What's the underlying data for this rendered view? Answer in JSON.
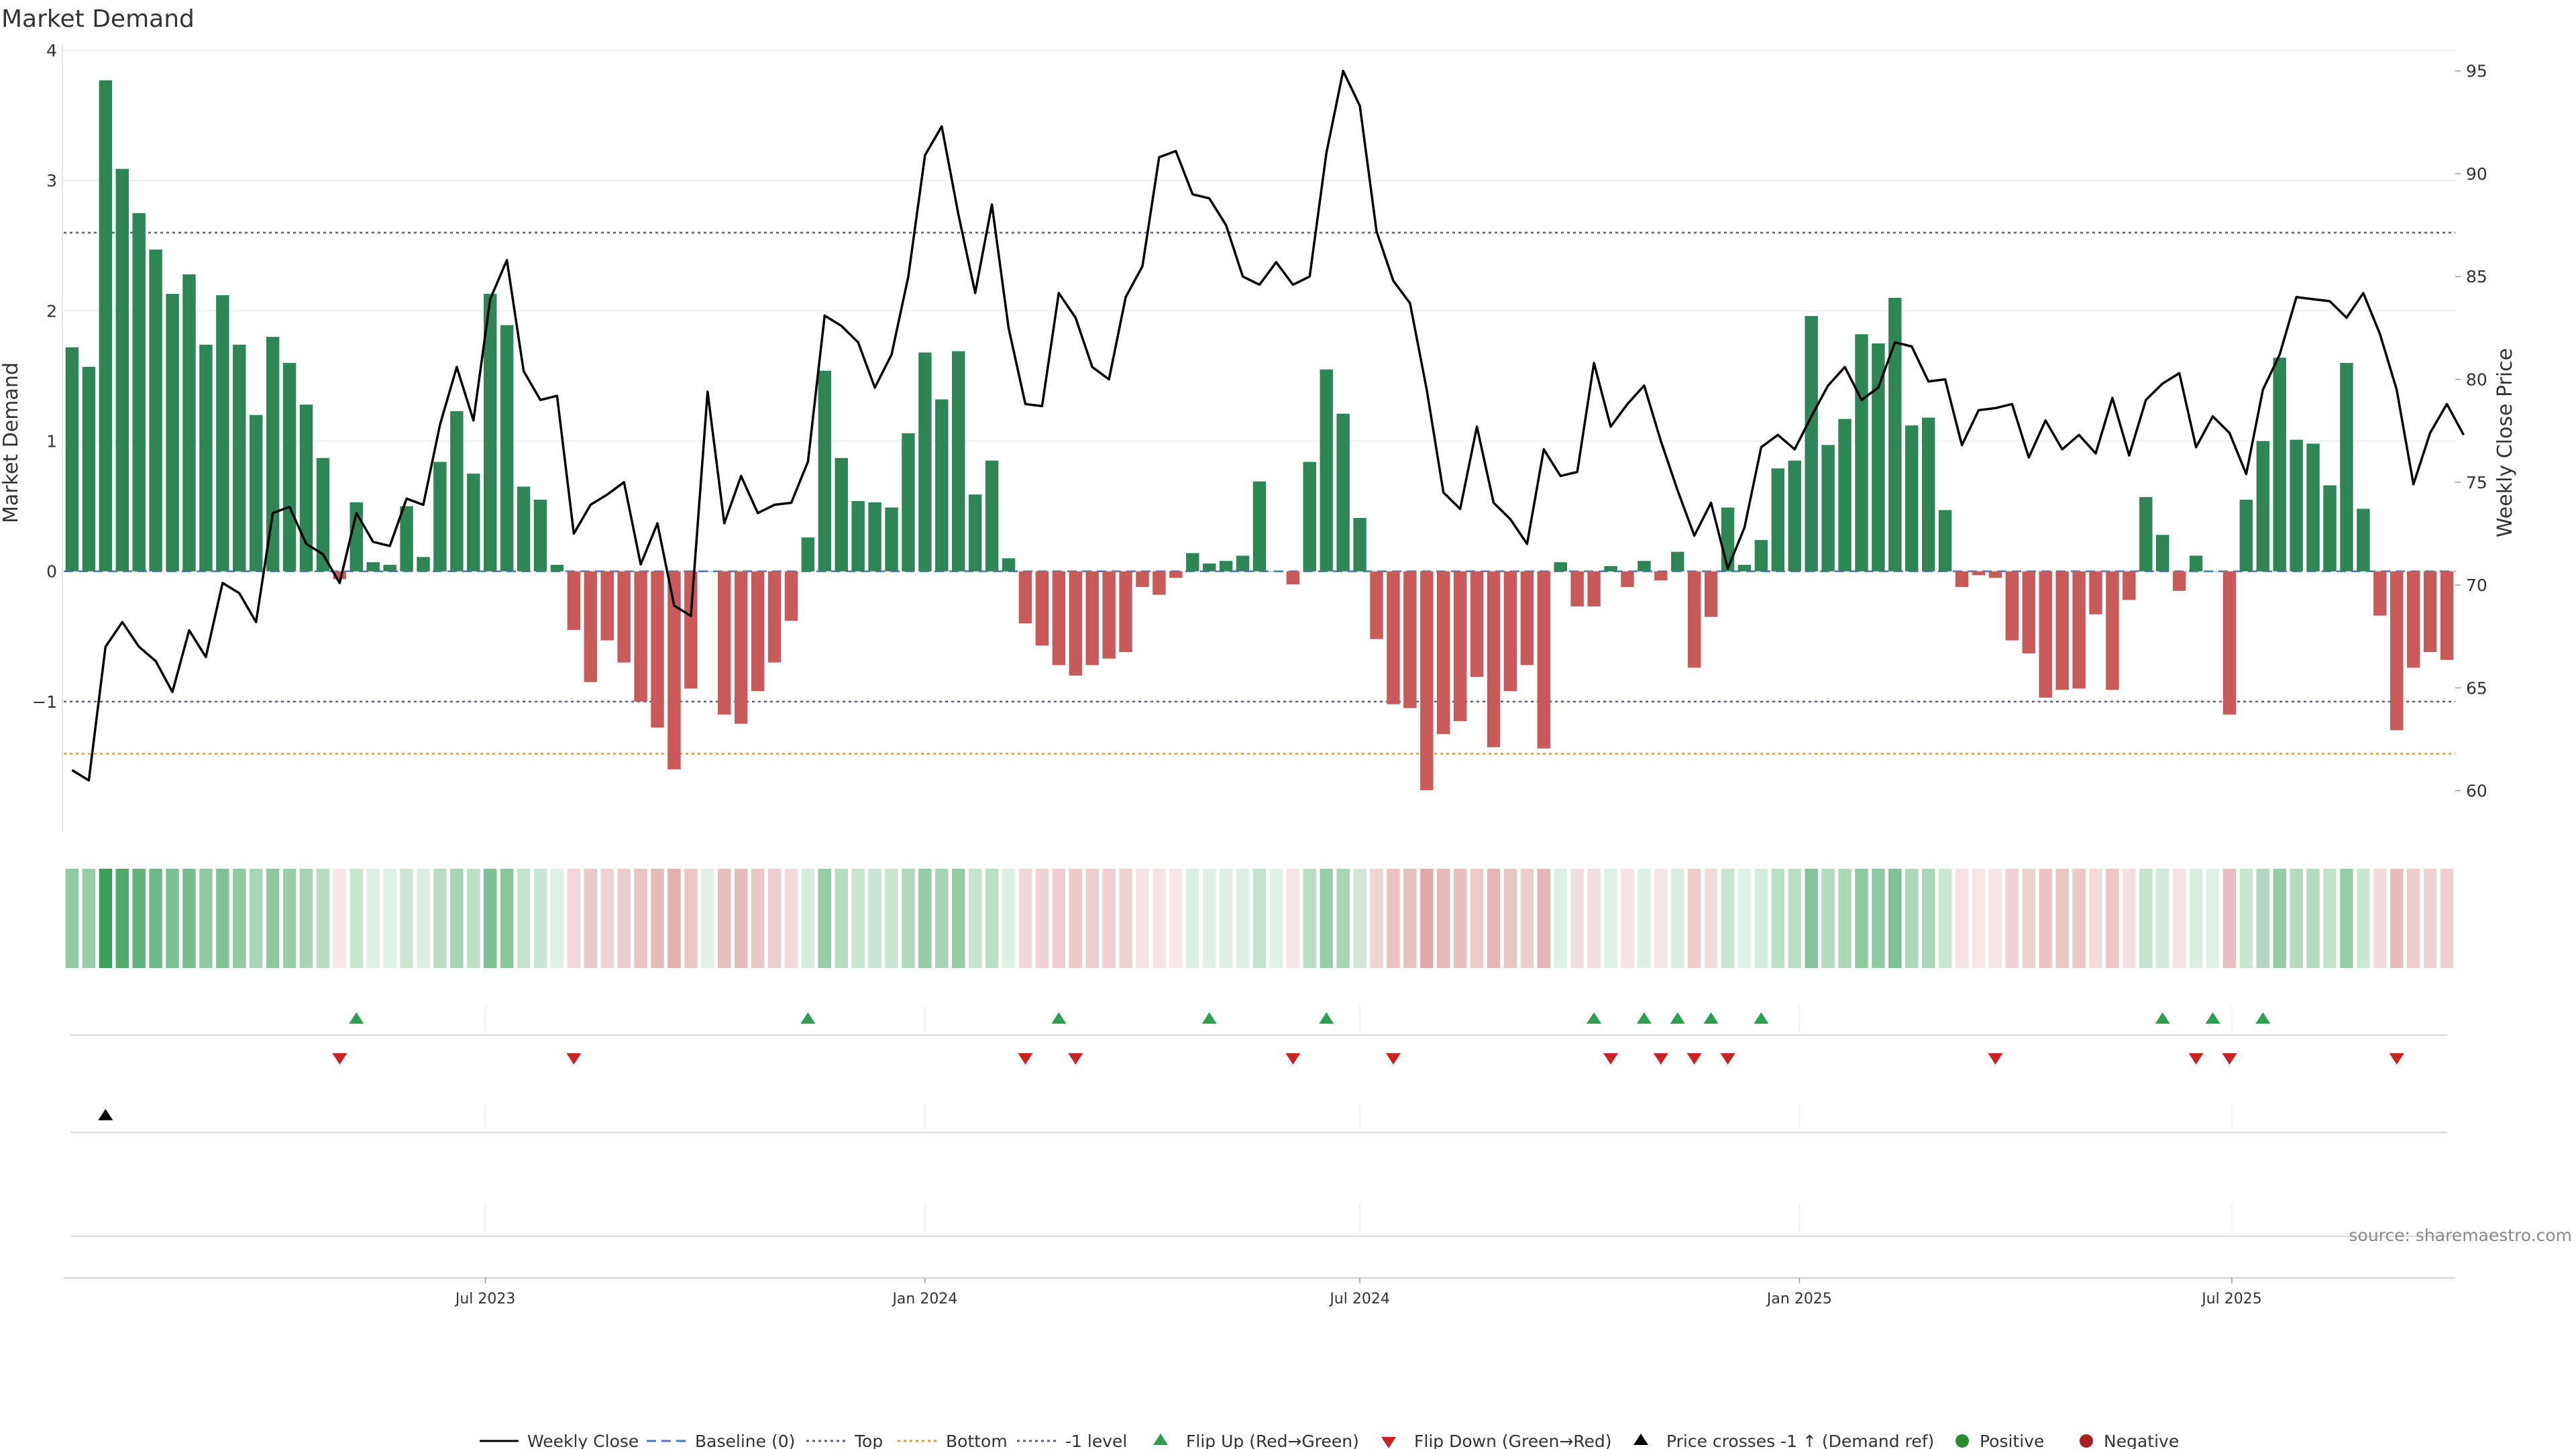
{
  "chart_data": {
    "type": "bar",
    "title": "Market Demand",
    "ylabel_left": "Market Demand",
    "ylabel_right": "Weekly Close Price",
    "left_ylim": [
      -2.0,
      4.0
    ],
    "left_yticks": [
      4,
      3,
      2,
      1,
      0,
      -1
    ],
    "left_ytick_labels": [
      "4",
      "3",
      "2",
      "1",
      "0",
      "−1"
    ],
    "right_ylim": [
      58,
      96
    ],
    "right_yticks": [
      95,
      90,
      85,
      80,
      75,
      70,
      65,
      60
    ],
    "right_ytick_labels": [
      "95",
      "90",
      "85",
      "80",
      "75",
      "70",
      "65",
      "60"
    ],
    "top_level": 2.6,
    "bottom_level": -1.4,
    "minus_one_level": -1.0,
    "x_start": "2023-01-09",
    "x_step_days": 7,
    "x_ticks": [
      {
        "date": "2023-07-01",
        "label": "Jul 2023"
      },
      {
        "date": "2024-01-01",
        "label": "Jan 2024"
      },
      {
        "date": "2024-07-01",
        "label": "Jul 2024"
      },
      {
        "date": "2025-01-01",
        "label": "Jan 2025"
      },
      {
        "date": "2025-07-01",
        "label": "Jul 2025"
      }
    ],
    "demand": [
      1.72,
      1.57,
      3.77,
      3.09,
      2.75,
      2.47,
      2.13,
      2.28,
      1.74,
      2.12,
      1.74,
      1.2,
      1.8,
      1.6,
      1.28,
      0.87,
      -0.06,
      0.53,
      0.07,
      0.05,
      0.5,
      0.11,
      0.84,
      1.23,
      0.75,
      2.13,
      1.89,
      0.65,
      0.55,
      0.05,
      -0.45,
      -0.85,
      -0.53,
      -0.7,
      -1.0,
      -1.2,
      -1.52,
      -0.9,
      0.0,
      -1.1,
      -1.17,
      -0.92,
      -0.7,
      -0.38,
      0.26,
      1.54,
      0.87,
      0.54,
      0.53,
      0.49,
      1.06,
      1.68,
      1.32,
      1.69,
      0.59,
      0.85,
      0.1,
      -0.4,
      -0.57,
      -0.72,
      -0.8,
      -0.72,
      -0.67,
      -0.62,
      -0.12,
      -0.18,
      -0.05,
      0.14,
      0.06,
      0.08,
      0.12,
      0.69,
      0.0,
      -0.1,
      0.84,
      1.55,
      1.21,
      0.41,
      -0.52,
      -1.02,
      -1.05,
      -1.68,
      -1.25,
      -1.15,
      -0.81,
      -1.35,
      -0.92,
      -0.72,
      -1.36,
      0.07,
      -0.27,
      -0.27,
      0.04,
      -0.12,
      0.08,
      -0.07,
      0.15,
      -0.74,
      -0.35,
      0.49,
      0.05,
      0.24,
      0.79,
      0.85,
      1.96,
      0.97,
      1.17,
      1.82,
      1.75,
      2.1,
      1.12,
      1.18,
      0.47,
      -0.12,
      -0.03,
      -0.05,
      -0.53,
      -0.63,
      -0.97,
      -0.91,
      -0.9,
      -0.33,
      -0.91,
      -0.22,
      0.57,
      0.28,
      -0.15,
      0.12,
      0.0,
      -1.1,
      0.55,
      1.0,
      1.64,
      1.01,
      0.98,
      0.66,
      1.6,
      0.48,
      -0.34,
      -1.22,
      -0.74,
      -0.62,
      -0.68
    ],
    "close": [
      61.0,
      60.5,
      67.0,
      68.2,
      67.0,
      66.3,
      64.8,
      67.8,
      66.5,
      70.1,
      69.6,
      68.2,
      73.5,
      73.8,
      72.0,
      71.5,
      70.1,
      73.5,
      72.1,
      71.9,
      74.2,
      73.9,
      77.8,
      80.6,
      78.0,
      83.9,
      85.8,
      80.4,
      79.0,
      79.2,
      72.5,
      73.9,
      74.4,
      75.0,
      71.0,
      73.0,
      69.0,
      68.5,
      79.4,
      73.0,
      75.3,
      73.5,
      73.9,
      74.0,
      76.0,
      83.1,
      82.6,
      81.8,
      79.6,
      81.2,
      85.0,
      90.9,
      92.3,
      88.0,
      84.2,
      88.5,
      82.5,
      78.8,
      78.7,
      84.2,
      83.0,
      80.6,
      80.0,
      84.0,
      85.5,
      90.8,
      91.1,
      89.0,
      88.8,
      87.5,
      85.0,
      84.6,
      85.7,
      84.6,
      85.0,
      91.0,
      95.0,
      93.3,
      87.2,
      84.8,
      83.7,
      79.5,
      74.5,
      73.7,
      77.7,
      74.0,
      73.2,
      72.0,
      76.6,
      75.3,
      75.5,
      80.8,
      77.7,
      78.8,
      79.7,
      77.0,
      74.6,
      72.4,
      74.0,
      70.8,
      72.8,
      76.7,
      77.3,
      76.6,
      78.2,
      79.7,
      80.6,
      79.0,
      79.6,
      81.8,
      81.6,
      79.9,
      80.0,
      76.8,
      78.5,
      78.6,
      78.8,
      76.2,
      78.0,
      76.6,
      77.3,
      76.4,
      79.1,
      76.3,
      79.0,
      79.8,
      80.3,
      76.7,
      78.2,
      77.4,
      75.4,
      79.5,
      81.2,
      84.0,
      83.9,
      83.8,
      83.0,
      84.2,
      82.2,
      79.5,
      74.9,
      77.4,
      78.8,
      77.3
    ],
    "flip_up_indices": [
      17,
      44,
      59,
      68,
      75,
      91,
      94,
      96,
      98,
      101,
      125,
      128,
      131
    ],
    "flip_down_indices": [
      16,
      30,
      57,
      60,
      73,
      79,
      92,
      95,
      97,
      99,
      115,
      127,
      129,
      139
    ],
    "price_cross_indices": [
      2
    ],
    "legend": [
      "Weekly Close",
      "Baseline (0)",
      "Top",
      "Bottom",
      "-1 level",
      "Flip Up (Red→Green)",
      "Flip Down (Green→Red)",
      "Price crosses -1 ↑ (Demand ref)",
      "Positive",
      "Negative"
    ],
    "source": "source: sharemaestro.com"
  },
  "colors": {
    "positive_bar": "#2e8657",
    "negative_bar": "#c85a5a",
    "price_line": "#000000",
    "baseline": "#4a78c0",
    "top_line": "#5a5a8a",
    "bottom_line": "#e8963a",
    "minus_one_line": "#5a5a8a",
    "flip_up": "#2e9e4f",
    "flip_down": "#cc2222",
    "positive_dot": "#2e8a2e",
    "negative_dot": "#aa1f1f"
  }
}
